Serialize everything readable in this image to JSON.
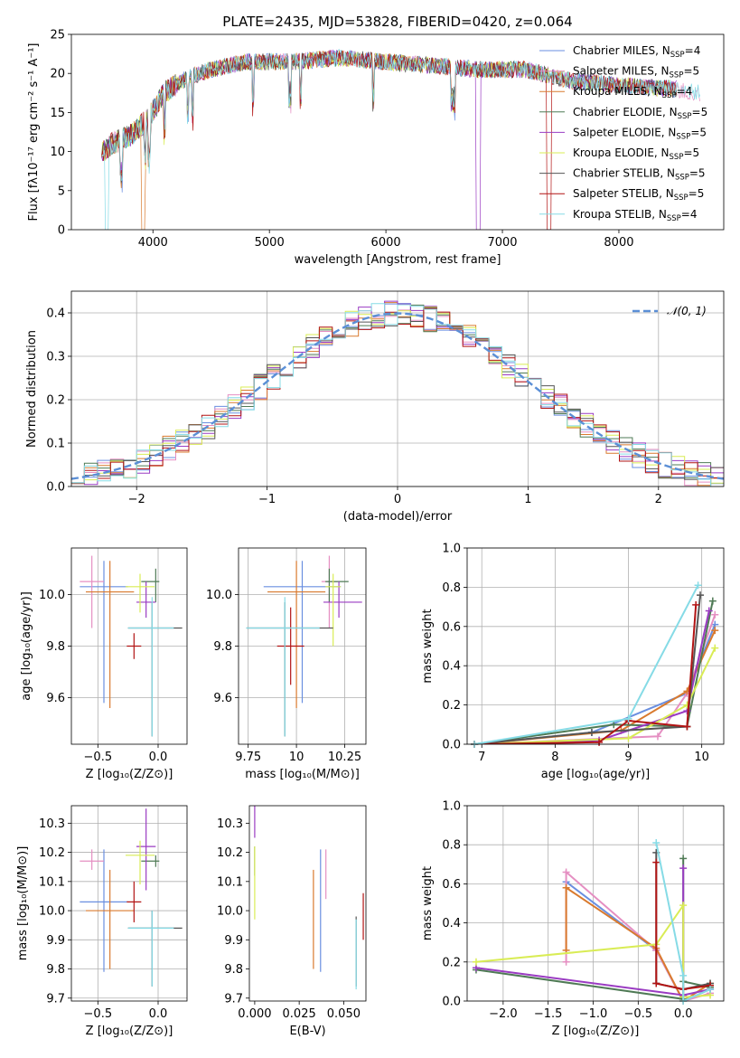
{
  "chart_data": [
    {
      "id": "spectrum",
      "type": "line",
      "title": "PLATE=2435, MJD=53828, FIBERID=0420, z=0.064",
      "xlabel": "wavelength [Angstrom, rest frame]",
      "ylabel": "Flux [fλ10⁻¹⁷ erg cm⁻² s⁻¹ A⁻¹]",
      "xlim": [
        3300,
        8900
      ],
      "ylim": [
        0,
        25
      ],
      "xticks": [
        4000,
        5000,
        6000,
        7000,
        8000
      ],
      "yticks": [
        0,
        5,
        10,
        15,
        20,
        25
      ],
      "grid": false,
      "legend_position": "top-right",
      "series": [
        {
          "name": "Chabrier MILES, N",
          "sub": "SSP",
          "tail": "=4",
          "color": "#6a8fe0"
        },
        {
          "name": "Salpeter MILES, N",
          "sub": "SSP",
          "tail": "=5",
          "color": "#e58fc2"
        },
        {
          "name": "Kroupa MILES, N",
          "sub": "SSP",
          "tail": "=4",
          "color": "#d97a2e"
        },
        {
          "name": "Chabrier ELODIE, N",
          "sub": "SSP",
          "tail": "=5",
          "color": "#4f7a55"
        },
        {
          "name": "Salpeter ELODIE, N",
          "sub": "SSP",
          "tail": "=5",
          "color": "#9a3bc2"
        },
        {
          "name": "Kroupa ELODIE, N",
          "sub": "SSP",
          "tail": "=5",
          "color": "#d9ec55"
        },
        {
          "name": "Chabrier STELIB, N",
          "sub": "SSP",
          "tail": "=5",
          "color": "#555555"
        },
        {
          "name": "Salpeter STELIB, N",
          "sub": "SSP",
          "tail": "=5",
          "color": "#b21414"
        },
        {
          "name": "Kroupa STELIB, N",
          "sub": "SSP",
          "tail": "=4",
          "color": "#86dbe6"
        }
      ],
      "continuum": [
        [
          3560,
          10
        ],
        [
          3650,
          11
        ],
        [
          3800,
          12
        ],
        [
          3950,
          14
        ],
        [
          4100,
          17.5
        ],
        [
          4300,
          19.5
        ],
        [
          4500,
          20.5
        ],
        [
          4800,
          21.5
        ],
        [
          5200,
          21.5
        ],
        [
          5600,
          22
        ],
        [
          6000,
          21.5
        ],
        [
          6400,
          21
        ],
        [
          6800,
          20.5
        ],
        [
          7200,
          20.5
        ],
        [
          7600,
          19
        ],
        [
          8000,
          18.5
        ],
        [
          8500,
          18
        ],
        [
          8700,
          17.5
        ]
      ]
    },
    {
      "id": "residuals",
      "type": "histogram",
      "xlabel": "(data-model)/error",
      "ylabel": "Normed distribution",
      "xlim": [
        -2.5,
        2.5
      ],
      "ylim": [
        0,
        0.45
      ],
      "xticks": [
        -2,
        -1,
        0,
        1,
        2
      ],
      "yticks": [
        0.0,
        0.1,
        0.2,
        0.3,
        0.4
      ],
      "grid": true,
      "legend_position": "top-right",
      "reference_label": "𝒩(0, 1)",
      "reference_color": "#5b8fd6",
      "bin_width": 0.1
    },
    {
      "id": "age-vs-Z",
      "type": "errorbar",
      "xlabel": "Z [log₁₀(Z/Z⊙)]",
      "ylabel": "age  [log₁₀(age/yr)]",
      "xlim": [
        -0.72,
        0.24
      ],
      "ylim": [
        9.42,
        10.18
      ],
      "xticks": [
        -0.5,
        0.0
      ],
      "yticks": [
        9.6,
        9.8,
        10.0
      ],
      "grid": true,
      "points": [
        {
          "series": 0,
          "x": -0.45,
          "y": 10.03,
          "xerr": [
            0.2,
            0.2
          ],
          "yerr": [
            0.45,
            0.1
          ]
        },
        {
          "series": 1,
          "x": -0.55,
          "y": 10.05,
          "xerr": [
            0.1,
            0.1
          ],
          "yerr": [
            0.18,
            0.1
          ]
        },
        {
          "series": 2,
          "x": -0.4,
          "y": 10.01,
          "xerr": [
            0.2,
            0.2
          ],
          "yerr": [
            0.45,
            0.12
          ]
        },
        {
          "series": 3,
          "x": -0.02,
          "y": 10.05,
          "xerr": [
            0.12,
            0.03
          ],
          "yerr": [
            0.08,
            0.05
          ]
        },
        {
          "series": 4,
          "x": -0.1,
          "y": 9.97,
          "xerr": [
            0.08,
            0.08
          ],
          "yerr": [
            0.06,
            0.08
          ]
        },
        {
          "series": 5,
          "x": -0.15,
          "y": 10.03,
          "xerr": [
            0.12,
            0.12
          ],
          "yerr": [
            0.1,
            0.05
          ]
        },
        {
          "series": 6,
          "x": -0.05,
          "y": 9.87,
          "xerr": [
            0.2,
            0.25
          ],
          "yerr": [
            0.42,
            0.1
          ]
        },
        {
          "series": 7,
          "x": -0.2,
          "y": 9.8,
          "xerr": [
            0.06,
            0.06
          ],
          "yerr": [
            0.05,
            0.05
          ]
        },
        {
          "series": 8,
          "x": -0.05,
          "y": 9.87,
          "xerr": [
            0.2,
            0.18
          ],
          "yerr": [
            0.42,
            0.12
          ]
        }
      ]
    },
    {
      "id": "age-vs-mass",
      "type": "errorbar",
      "xlabel": "mass [log₁₀(M/M⊙)]",
      "ylabel": "",
      "xlim": [
        9.7,
        10.36
      ],
      "ylim": [
        9.42,
        10.18
      ],
      "xticks": [
        9.75,
        10.0,
        10.25
      ],
      "yticks": [
        9.6,
        9.8,
        10.0
      ],
      "grid": true,
      "points": [
        {
          "series": 0,
          "x": 10.03,
          "y": 10.03,
          "xerr": [
            0.2,
            0.2
          ],
          "yerr": [
            0.45,
            0.1
          ]
        },
        {
          "series": 1,
          "x": 10.17,
          "y": 10.05,
          "xerr": [
            0.04,
            0.04
          ],
          "yerr": [
            0.18,
            0.1
          ]
        },
        {
          "series": 2,
          "x": 10.0,
          "y": 10.01,
          "xerr": [
            0.15,
            0.15
          ],
          "yerr": [
            0.45,
            0.12
          ]
        },
        {
          "series": 3,
          "x": 10.17,
          "y": 10.05,
          "xerr": [
            0.02,
            0.1
          ],
          "yerr": [
            0.08,
            0.05
          ]
        },
        {
          "series": 4,
          "x": 10.22,
          "y": 9.97,
          "xerr": [
            0.08,
            0.12
          ],
          "yerr": [
            0.06,
            0.08
          ]
        },
        {
          "series": 5,
          "x": 10.19,
          "y": 10.03,
          "xerr": [
            0.04,
            0.04
          ],
          "yerr": [
            0.23,
            0.05
          ]
        },
        {
          "series": 6,
          "x": 9.94,
          "y": 9.87,
          "xerr": [
            0.2,
            0.25
          ],
          "yerr": [
            0.42,
            0.1
          ]
        },
        {
          "series": 7,
          "x": 9.97,
          "y": 9.8,
          "xerr": [
            0.07,
            0.07
          ],
          "yerr": [
            0.15,
            0.15
          ]
        },
        {
          "series": 8,
          "x": 9.94,
          "y": 9.87,
          "xerr": [
            0.2,
            0.18
          ],
          "yerr": [
            0.42,
            0.12
          ]
        }
      ]
    },
    {
      "id": "weight-vs-age",
      "type": "line",
      "xlabel": "age  [log₁₀(age/yr)]",
      "ylabel": "mass weight",
      "xlim": [
        6.8,
        10.3
      ],
      "ylim": [
        0,
        1
      ],
      "xticks": [
        7,
        8,
        9,
        10
      ],
      "yticks": [
        0.0,
        0.2,
        0.4,
        0.6,
        0.8,
        1.0
      ],
      "grid": true,
      "series": [
        {
          "series": 0,
          "points": [
            [
              6.9,
              0.0
            ],
            [
              8.5,
              0.06
            ],
            [
              9.8,
              0.26
            ],
            [
              10.18,
              0.61
            ]
          ]
        },
        {
          "series": 1,
          "points": [
            [
              6.9,
              0.0
            ],
            [
              9.4,
              0.04
            ],
            [
              9.8,
              0.26
            ],
            [
              10.18,
              0.66
            ]
          ]
        },
        {
          "series": 2,
          "points": [
            [
              6.9,
              0.0
            ],
            [
              8.9,
              0.07
            ],
            [
              9.8,
              0.27
            ],
            [
              10.18,
              0.58
            ]
          ]
        },
        {
          "series": 3,
          "points": [
            [
              6.9,
              0.0
            ],
            [
              8.8,
              0.1
            ],
            [
              9.8,
              0.09
            ],
            [
              10.15,
              0.73
            ]
          ]
        },
        {
          "series": 4,
          "points": [
            [
              6.9,
              0.0
            ],
            [
              8.6,
              0.02
            ],
            [
              9.8,
              0.17
            ],
            [
              10.1,
              0.68
            ]
          ]
        },
        {
          "series": 5,
          "points": [
            [
              6.9,
              0.0
            ],
            [
              9.0,
              0.03
            ],
            [
              9.8,
              0.2
            ],
            [
              10.18,
              0.49
            ]
          ]
        },
        {
          "series": 6,
          "points": [
            [
              6.9,
              0.0
            ],
            [
              8.5,
              0.06
            ],
            [
              9.8,
              0.09
            ],
            [
              9.98,
              0.76
            ]
          ]
        },
        {
          "series": 7,
          "points": [
            [
              6.9,
              0.0
            ],
            [
              8.6,
              0.01
            ],
            [
              9.0,
              0.12
            ],
            [
              9.8,
              0.09
            ],
            [
              9.92,
              0.71
            ]
          ]
        },
        {
          "series": 8,
          "points": [
            [
              6.9,
              0.0
            ],
            [
              9.0,
              0.13
            ],
            [
              9.95,
              0.81
            ]
          ]
        }
      ]
    },
    {
      "id": "mass-vs-Z",
      "type": "errorbar",
      "xlabel": "Z [log₁₀(Z/Z⊙)]",
      "ylabel": "mass [log₁₀(M/M⊙)]",
      "xlim": [
        -0.72,
        0.24
      ],
      "ylim": [
        9.69,
        10.36
      ],
      "xticks": [
        -0.5,
        0.0
      ],
      "yticks": [
        9.7,
        9.8,
        9.9,
        10.0,
        10.1,
        10.2,
        10.3
      ],
      "grid": true,
      "points": [
        {
          "series": 0,
          "x": -0.45,
          "y": 10.03,
          "xerr": [
            0.2,
            0.2
          ],
          "yerr": [
            0.24,
            0.18
          ]
        },
        {
          "series": 1,
          "x": -0.55,
          "y": 10.17,
          "xerr": [
            0.1,
            0.1
          ],
          "yerr": [
            0.03,
            0.04
          ]
        },
        {
          "series": 2,
          "x": -0.4,
          "y": 10.0,
          "xerr": [
            0.2,
            0.2
          ],
          "yerr": [
            0.2,
            0.14
          ]
        },
        {
          "series": 3,
          "x": -0.02,
          "y": 10.17,
          "xerr": [
            0.12,
            0.03
          ],
          "yerr": [
            0.02,
            0.02
          ]
        },
        {
          "series": 4,
          "x": -0.1,
          "y": 10.22,
          "xerr": [
            0.08,
            0.08
          ],
          "yerr": [
            0.15,
            0.13
          ]
        },
        {
          "series": 5,
          "x": -0.15,
          "y": 10.19,
          "xerr": [
            0.12,
            0.12
          ],
          "yerr": [
            0.1,
            0.05
          ]
        },
        {
          "series": 6,
          "x": -0.05,
          "y": 9.94,
          "xerr": [
            0.2,
            0.25
          ],
          "yerr": [
            0.2,
            0.06
          ]
        },
        {
          "series": 7,
          "x": -0.2,
          "y": 10.03,
          "xerr": [
            0.06,
            0.06
          ],
          "yerr": [
            0.07,
            0.07
          ]
        },
        {
          "series": 8,
          "x": -0.05,
          "y": 9.94,
          "xerr": [
            0.2,
            0.18
          ],
          "yerr": [
            0.2,
            0.06
          ]
        }
      ]
    },
    {
      "id": "mass-vs-ebv",
      "type": "errorbar",
      "xlabel": "E(B-V)",
      "ylabel": "",
      "xlim": [
        -0.003,
        0.0625
      ],
      "ylim": [
        9.69,
        10.36
      ],
      "xticks": [
        0.0,
        0.025,
        0.05
      ],
      "yticks": [
        9.7,
        9.8,
        9.9,
        10.0,
        10.1,
        10.2,
        10.3
      ],
      "grid": false,
      "points": [
        {
          "series": 0,
          "x": 0.037,
          "y": 10.03,
          "yerr": [
            0.24,
            0.18
          ]
        },
        {
          "series": 1,
          "x": 0.04,
          "y": 10.17,
          "yerr": [
            0.13,
            0.04
          ]
        },
        {
          "series": 2,
          "x": 0.033,
          "y": 10.0,
          "yerr": [
            0.2,
            0.14
          ]
        },
        {
          "series": 3,
          "x": 0.0,
          "y": 10.17,
          "yerr": [
            0.05,
            0.05
          ]
        },
        {
          "series": 4,
          "x": 0.0,
          "y": 10.3,
          "yerr": [
            0.05,
            0.06
          ]
        },
        {
          "series": 5,
          "x": 0.0,
          "y": 10.1,
          "yerr": [
            0.13,
            0.12
          ]
        },
        {
          "series": 6,
          "x": 0.057,
          "y": 9.86,
          "yerr": [
            0.12,
            0.12
          ]
        },
        {
          "series": 7,
          "x": 0.061,
          "y": 9.98,
          "yerr": [
            0.08,
            0.08
          ]
        },
        {
          "series": 8,
          "x": 0.057,
          "y": 9.85,
          "yerr": [
            0.12,
            0.12
          ]
        }
      ]
    },
    {
      "id": "weight-vs-Z",
      "type": "line",
      "xlabel": "Z [log₁₀(Z/Z⊙)]",
      "ylabel": "mass weight",
      "xlim": [
        -2.4,
        0.45
      ],
      "ylim": [
        0,
        1
      ],
      "xticks": [
        -2.0,
        -1.5,
        -1.0,
        -0.5,
        0.0
      ],
      "yticks": [
        0.0,
        0.2,
        0.4,
        0.6,
        0.8,
        1.0
      ],
      "grid": true,
      "series": [
        {
          "series": 0,
          "points": [
            [
              -1.3,
              0.61
            ],
            [
              -0.3,
              0.26
            ],
            [
              0.0,
              0.0
            ],
            [
              0.3,
              0.06
            ]
          ]
        },
        {
          "series": 1,
          "points": [
            [
              -1.3,
              0.2
            ],
            [
              -1.3,
              0.66
            ],
            [
              -0.3,
              0.26
            ],
            [
              0.0,
              0.0
            ],
            [
              0.3,
              0.04
            ]
          ]
        },
        {
          "series": 2,
          "points": [
            [
              -1.3,
              0.26
            ],
            [
              -1.3,
              0.58
            ],
            [
              -0.3,
              0.27
            ],
            [
              0.0,
              0.0
            ],
            [
              0.3,
              0.09
            ]
          ]
        },
        {
          "series": 3,
          "points": [
            [
              -2.3,
              0.16
            ],
            [
              0.0,
              0.01
            ],
            [
              0.0,
              0.73
            ],
            [
              0.0,
              0.1
            ],
            [
              0.3,
              0.07
            ]
          ]
        },
        {
          "series": 4,
          "points": [
            [
              -2.3,
              0.17
            ],
            [
              0.0,
              0.03
            ],
            [
              0.0,
              0.68
            ],
            [
              0.0,
              0.03
            ],
            [
              0.3,
              0.06
            ]
          ]
        },
        {
          "series": 5,
          "points": [
            [
              -2.3,
              0.2
            ],
            [
              -0.3,
              0.29
            ],
            [
              0.0,
              0.49
            ],
            [
              0.0,
              0.02
            ],
            [
              0.3,
              0.03
            ]
          ]
        },
        {
          "series": 6,
          "points": [
            [
              -0.3,
              0.76
            ],
            [
              -0.3,
              0.09
            ],
            [
              0.0,
              0.06
            ],
            [
              0.3,
              0.09
            ]
          ]
        },
        {
          "series": 7,
          "points": [
            [
              -0.3,
              0.71
            ],
            [
              -0.3,
              0.09
            ],
            [
              0.0,
              0.06
            ],
            [
              0.3,
              0.08
            ]
          ]
        },
        {
          "series": 8,
          "points": [
            [
              -0.3,
              0.81
            ],
            [
              0.0,
              0.13
            ],
            [
              0.0,
              0.0
            ],
            [
              0.3,
              0.06
            ]
          ]
        }
      ]
    }
  ]
}
